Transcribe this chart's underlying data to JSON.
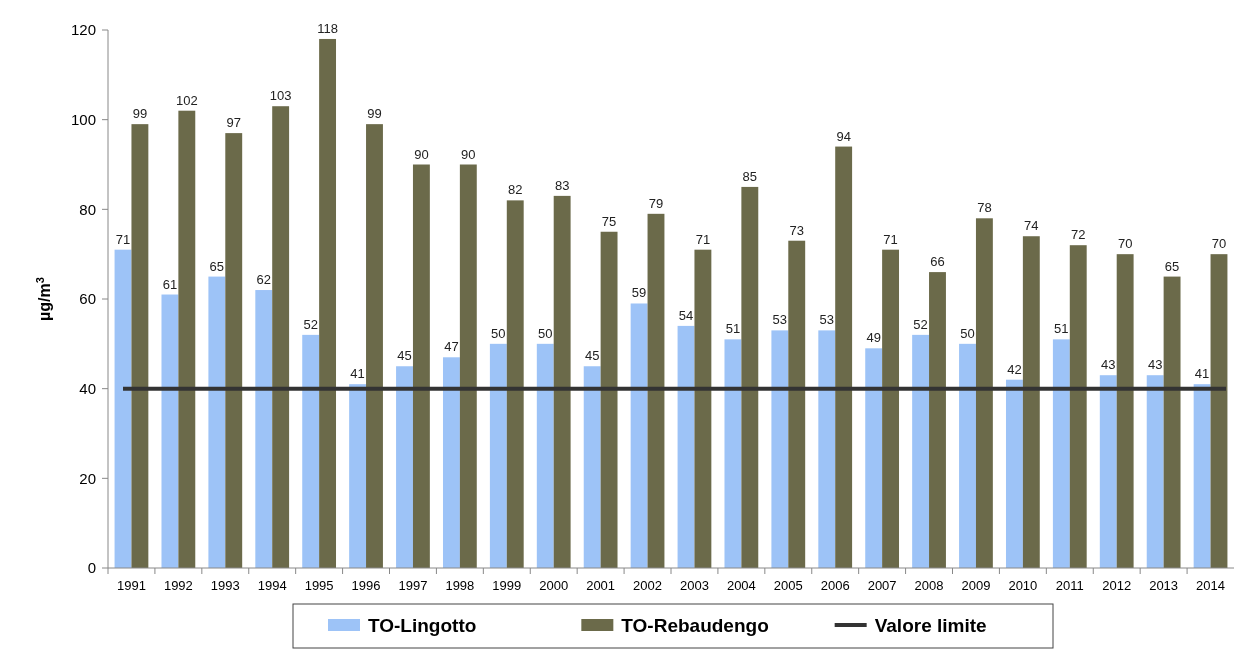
{
  "chart_data": {
    "type": "bar",
    "ylabel": "µg/m$^{3}$",
    "categories": [
      "1991",
      "1992",
      "1993",
      "1994",
      "1995",
      "1996",
      "1997",
      "1998",
      "1999",
      "2000",
      "2001",
      "2002",
      "2003",
      "2004",
      "2005",
      "2006",
      "2007",
      "2008",
      "2009",
      "2010",
      "2011",
      "2012",
      "2013",
      "2014"
    ],
    "series": [
      {
        "name": "TO-Lingotto",
        "color": "#9dc3f7",
        "values": [
          71,
          61,
          65,
          62,
          52,
          41,
          45,
          47,
          50,
          50,
          45,
          59,
          54,
          51,
          53,
          53,
          49,
          52,
          50,
          42,
          51,
          43,
          43,
          41
        ]
      },
      {
        "name": "TO-Rebaudengo",
        "color": "#6b6a4a",
        "values": [
          99,
          102,
          97,
          103,
          118,
          99,
          90,
          90,
          82,
          83,
          75,
          79,
          71,
          85,
          73,
          94,
          71,
          66,
          78,
          74,
          72,
          70,
          65,
          70
        ]
      }
    ],
    "ref_lines": [
      {
        "axis": "y",
        "value": 40,
        "label": "Valore limite",
        "color": "#333333"
      }
    ],
    "ylim": [
      0,
      120
    ],
    "yticks": [
      0,
      20,
      40,
      60,
      80,
      100,
      120
    ],
    "data_labels": true,
    "legend": "bottom",
    "grid": false
  }
}
